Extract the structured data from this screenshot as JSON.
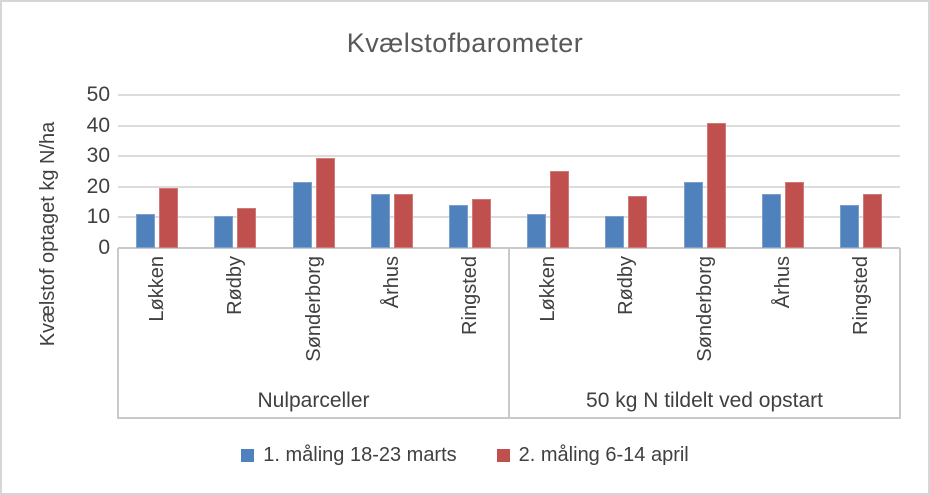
{
  "frame": {
    "border_color": "#d6d6d6",
    "background": "#ffffff"
  },
  "chart_data": {
    "type": "bar",
    "title": "Kvælstofbarometer",
    "xlabel": "",
    "ylabel": "Kvælstof optaget kg N/ha",
    "ylim": [
      0,
      50
    ],
    "yticks": [
      0,
      10,
      20,
      30,
      40,
      50
    ],
    "grid": true,
    "legend_position": "bottom",
    "groups": [
      "Nulparceller",
      "50 kg N tildelt ved opstart"
    ],
    "categories": [
      "Løkken",
      "Rødby",
      "Sønderborg",
      "Århus",
      "Ringsted"
    ],
    "series": [
      {
        "name": "1. måling 18-23 marts",
        "color": "#4F81BD",
        "border_color": "#7da0ca",
        "values_by_group": [
          [
            11,
            10.5,
            21.5,
            17.5,
            14
          ],
          [
            11,
            10.5,
            21.5,
            17.5,
            14
          ]
        ]
      },
      {
        "name": "2. måling 6-14 april",
        "color": "#C0504D",
        "border_color": "#cf7a78",
        "values_by_group": [
          [
            19.5,
            13,
            29.5,
            17.5,
            16
          ],
          [
            25,
            17,
            41,
            21.5,
            17.5
          ]
        ]
      }
    ]
  }
}
